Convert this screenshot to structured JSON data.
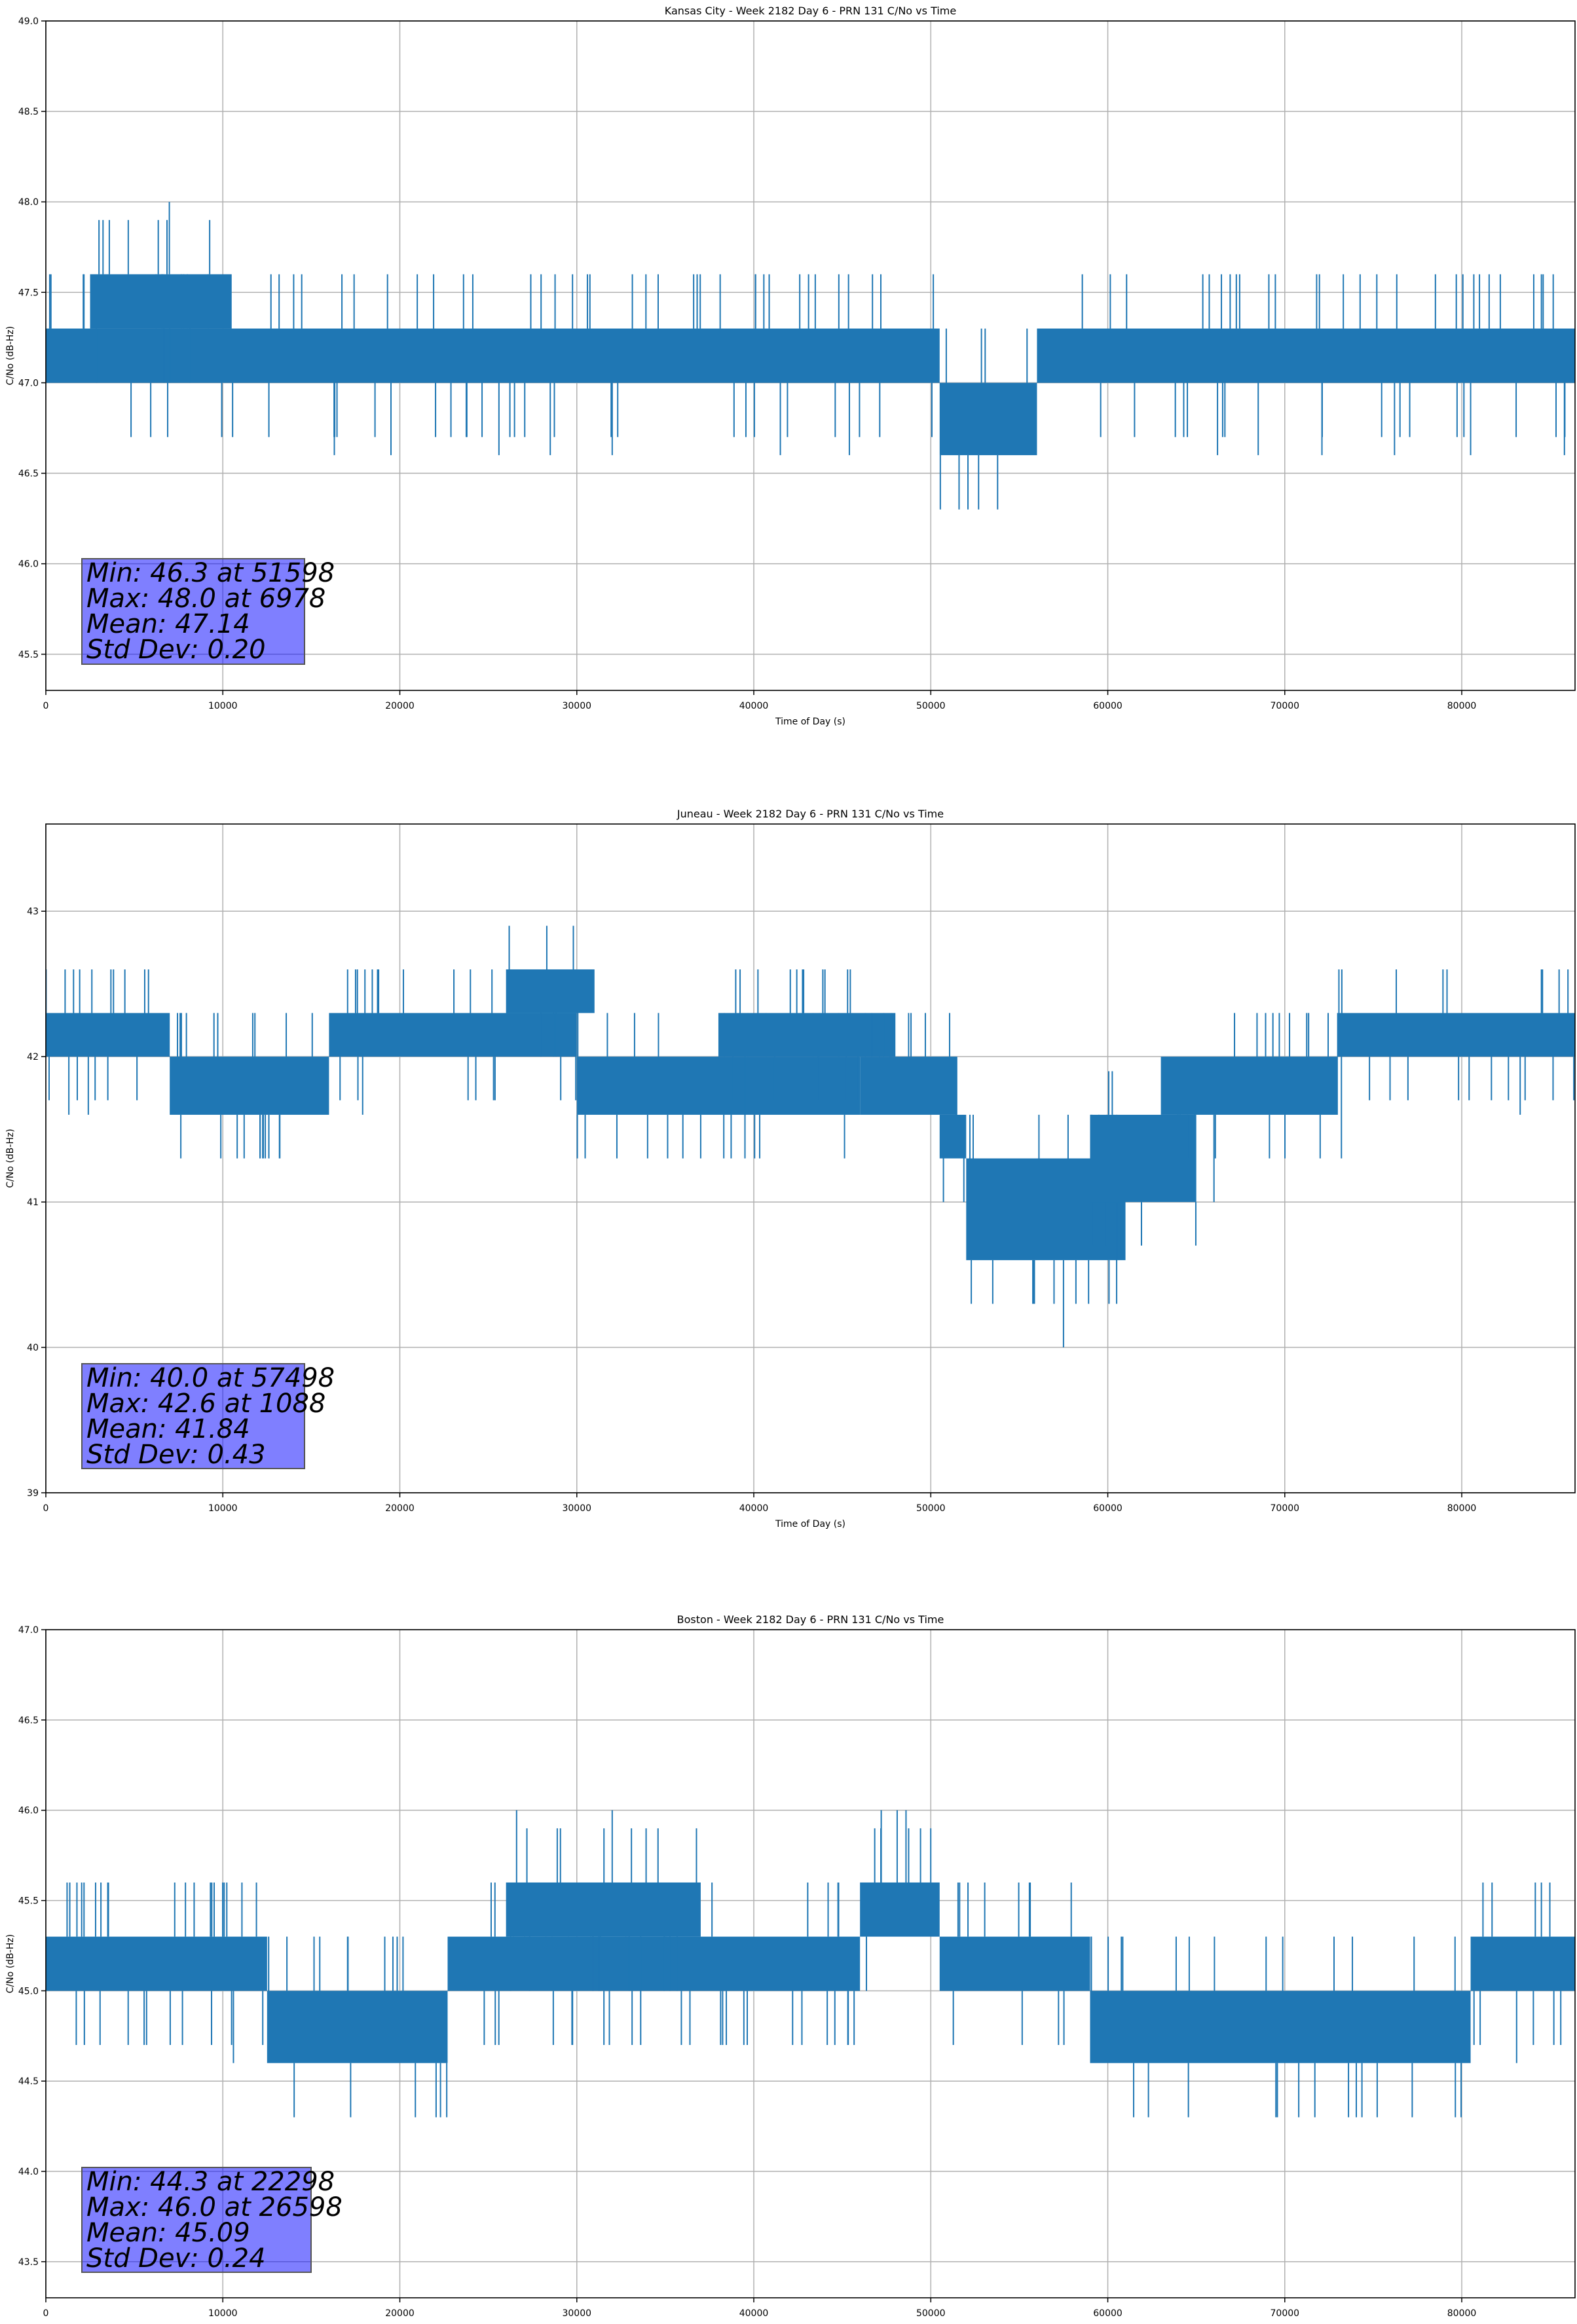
{
  "colors": {
    "series": "#1f77b4",
    "grid": "#b0b0b0",
    "stats_box": "#8080ff"
  },
  "chart_data": [
    {
      "type": "line",
      "title": "Kansas City - Week 2182 Day 6 - PRN 131 C/No vs Time",
      "xlabel": "Time of Day (s)",
      "ylabel": "C/No (dB-Hz)",
      "xlim": [
        0,
        86400
      ],
      "ylim": [
        45.3,
        49.0
      ],
      "xticks": [
        0,
        10000,
        20000,
        30000,
        40000,
        50000,
        60000,
        70000,
        80000
      ],
      "xtick_labels": [
        "0",
        "10000",
        "20000",
        "30000",
        "40000",
        "50000",
        "60000",
        "70000",
        "80000"
      ],
      "yticks": [
        45.5,
        46.0,
        46.5,
        47.0,
        47.5,
        48.0,
        48.5,
        49.0
      ],
      "ytick_labels": [
        "45.5",
        "46.0",
        "46.5",
        "47.0",
        "47.5",
        "48.0",
        "48.5",
        "49.0"
      ],
      "grid": true,
      "bands": [
        {
          "x": [
            0,
            50500
          ],
          "range": [
            47.0,
            47.3
          ]
        },
        {
          "x": [
            2500,
            10500
          ],
          "range": [
            47.3,
            47.6
          ]
        },
        {
          "x": [
            50500,
            56000
          ],
          "range": [
            46.6,
            47.0
          ]
        },
        {
          "x": [
            56000,
            86400
          ],
          "range": [
            47.0,
            47.3
          ]
        }
      ],
      "spikes": [
        {
          "x": 6978,
          "value": 48.0
        },
        {
          "x": 51598,
          "value": 46.3
        },
        {
          "x": 52100,
          "value": 46.3
        },
        {
          "x": 52700,
          "value": 46.3
        },
        {
          "x": 16300,
          "value": 46.6
        },
        {
          "x": 19500,
          "value": 46.6
        },
        {
          "x": 25600,
          "value": 46.6
        },
        {
          "x": 28500,
          "value": 46.6
        },
        {
          "x": 32000,
          "value": 46.6
        },
        {
          "x": 41500,
          "value": 46.6
        },
        {
          "x": 45400,
          "value": 46.6
        },
        {
          "x": 66200,
          "value": 46.6
        },
        {
          "x": 68500,
          "value": 46.6
        },
        {
          "x": 72100,
          "value": 46.6
        },
        {
          "x": 76200,
          "value": 46.6
        },
        {
          "x": 80500,
          "value": 46.6
        },
        {
          "x": 85800,
          "value": 46.6
        },
        {
          "x": 23600,
          "value": 47.6
        },
        {
          "x": 27400,
          "value": 47.6
        },
        {
          "x": 30600,
          "value": 47.6
        },
        {
          "x": 36800,
          "value": 47.6
        },
        {
          "x": 38100,
          "value": 47.6
        },
        {
          "x": 69100,
          "value": 47.6
        },
        {
          "x": 71800,
          "value": 47.6
        },
        {
          "x": 75200,
          "value": 47.6
        },
        {
          "x": 81000,
          "value": 47.6
        },
        {
          "x": 84500,
          "value": 47.6
        }
      ],
      "stats": [
        "Min: 46.3 at 51598",
        "Max: 48.0 at 6978",
        "Mean: 47.14",
        "Std Dev: 0.20"
      ]
    },
    {
      "type": "line",
      "title": "Juneau - Week 2182 Day 6 - PRN 131 C/No vs Time",
      "xlabel": "Time of Day (s)",
      "ylabel": "C/No (dB-Hz)",
      "xlim": [
        0,
        86400
      ],
      "ylim": [
        39.0,
        43.6
      ],
      "xticks": [
        0,
        10000,
        20000,
        30000,
        40000,
        50000,
        60000,
        70000,
        80000
      ],
      "xtick_labels": [
        "0",
        "10000",
        "20000",
        "30000",
        "40000",
        "50000",
        "60000",
        "70000",
        "80000"
      ],
      "yticks": [
        39,
        40,
        41,
        42,
        43
      ],
      "ytick_labels": [
        "39",
        "40",
        "41",
        "42",
        "43"
      ],
      "grid": true,
      "bands": [
        {
          "x": [
            0,
            7000
          ],
          "range": [
            42.0,
            42.3
          ]
        },
        {
          "x": [
            7000,
            16000
          ],
          "range": [
            41.6,
            42.0
          ]
        },
        {
          "x": [
            16000,
            30000
          ],
          "range": [
            42.0,
            42.3
          ]
        },
        {
          "x": [
            26000,
            31000
          ],
          "range": [
            42.3,
            42.6
          ]
        },
        {
          "x": [
            30000,
            46000
          ],
          "range": [
            41.6,
            42.0
          ]
        },
        {
          "x": [
            38000,
            48000
          ],
          "range": [
            42.0,
            42.3
          ]
        },
        {
          "x": [
            46000,
            51500
          ],
          "range": [
            41.6,
            42.0
          ]
        },
        {
          "x": [
            50500,
            52000
          ],
          "range": [
            41.3,
            41.6
          ]
        },
        {
          "x": [
            52000,
            61000
          ],
          "range": [
            40.6,
            41.3
          ]
        },
        {
          "x": [
            59000,
            65000
          ],
          "range": [
            41.0,
            41.6
          ]
        },
        {
          "x": [
            63000,
            73000
          ],
          "range": [
            41.6,
            42.0
          ]
        },
        {
          "x": [
            73000,
            86400
          ],
          "range": [
            42.0,
            42.3
          ]
        }
      ],
      "spikes": [
        {
          "x": 57498,
          "value": 40.0
        },
        {
          "x": 1088,
          "value": 42.6
        },
        {
          "x": 12100,
          "value": 41.3
        },
        {
          "x": 12600,
          "value": 41.3
        },
        {
          "x": 13200,
          "value": 41.3
        },
        {
          "x": 53500,
          "value": 40.3
        },
        {
          "x": 55800,
          "value": 40.3
        },
        {
          "x": 58200,
          "value": 40.3
        },
        {
          "x": 60500,
          "value": 40.3
        },
        {
          "x": 2600,
          "value": 42.6
        },
        {
          "x": 5800,
          "value": 42.6
        },
        {
          "x": 17500,
          "value": 42.6
        },
        {
          "x": 18800,
          "value": 42.6
        },
        {
          "x": 43900,
          "value": 42.6
        },
        {
          "x": 45300,
          "value": 42.6
        },
        {
          "x": 76300,
          "value": 42.6
        },
        {
          "x": 84500,
          "value": 42.6
        },
        {
          "x": 85500,
          "value": 42.6
        },
        {
          "x": 86000,
          "value": 42.6
        },
        {
          "x": 1300,
          "value": 41.6
        },
        {
          "x": 2400,
          "value": 41.6
        },
        {
          "x": 17900,
          "value": 41.6
        },
        {
          "x": 34000,
          "value": 41.3
        },
        {
          "x": 37000,
          "value": 41.3
        },
        {
          "x": 39500,
          "value": 41.3
        },
        {
          "x": 66000,
          "value": 41.0
        },
        {
          "x": 72000,
          "value": 41.3
        },
        {
          "x": 73200,
          "value": 41.3
        },
        {
          "x": 83300,
          "value": 41.6
        }
      ],
      "stats": [
        "Min: 40.0 at 57498",
        "Max: 42.6 at 1088",
        "Mean: 41.84",
        "Std Dev: 0.43"
      ]
    },
    {
      "type": "line",
      "title": "Boston - Week 2182 Day 6 - PRN 131 C/No vs Time",
      "xlabel": "Time of Day (s)",
      "ylabel": "C/No (dB-Hz)",
      "xlim": [
        0,
        86400
      ],
      "ylim": [
        43.3,
        47.0
      ],
      "xticks": [
        0,
        10000,
        20000,
        30000,
        40000,
        50000,
        60000,
        70000,
        80000
      ],
      "xtick_labels": [
        "0",
        "10000",
        "20000",
        "30000",
        "40000",
        "50000",
        "60000",
        "70000",
        "80000"
      ],
      "yticks": [
        43.5,
        44.0,
        44.5,
        45.0,
        45.5,
        46.0,
        46.5,
        47.0
      ],
      "ytick_labels": [
        "43.5",
        "44.0",
        "44.5",
        "45.0",
        "45.5",
        "46.0",
        "46.5",
        "47.0"
      ],
      "grid": true,
      "bands": [
        {
          "x": [
            0,
            12500
          ],
          "range": [
            45.0,
            45.3
          ]
        },
        {
          "x": [
            12500,
            22700
          ],
          "range": [
            44.6,
            45.0
          ]
        },
        {
          "x": [
            22700,
            46000
          ],
          "range": [
            45.0,
            45.3
          ]
        },
        {
          "x": [
            26000,
            37000
          ],
          "range": [
            45.3,
            45.6
          ]
        },
        {
          "x": [
            46000,
            50500
          ],
          "range": [
            45.3,
            45.6
          ]
        },
        {
          "x": [
            50500,
            59000
          ],
          "range": [
            45.0,
            45.3
          ]
        },
        {
          "x": [
            59000,
            80500
          ],
          "range": [
            44.6,
            45.0
          ]
        },
        {
          "x": [
            80500,
            86400
          ],
          "range": [
            45.0,
            45.3
          ]
        }
      ],
      "spikes": [
        {
          "x": 22298,
          "value": 44.3
        },
        {
          "x": 26598,
          "value": 46.0
        },
        {
          "x": 32000,
          "value": 46.0
        },
        {
          "x": 47200,
          "value": 46.0
        },
        {
          "x": 48100,
          "value": 46.0
        },
        {
          "x": 48600,
          "value": 46.0
        },
        {
          "x": 69500,
          "value": 44.3
        },
        {
          "x": 71700,
          "value": 44.3
        },
        {
          "x": 73600,
          "value": 44.3
        },
        {
          "x": 84500,
          "value": 45.6
        },
        {
          "x": 1200,
          "value": 45.6
        },
        {
          "x": 3500,
          "value": 45.6
        },
        {
          "x": 9300,
          "value": 45.6
        },
        {
          "x": 10600,
          "value": 44.6
        },
        {
          "x": 44200,
          "value": 45.6
        },
        {
          "x": 67100,
          "value": 44.6
        },
        {
          "x": 83100,
          "value": 44.6
        }
      ],
      "stats": [
        "Min: 44.3 at 22298",
        "Max: 46.0 at 26598",
        "Mean: 45.09",
        "Std Dev: 0.24"
      ]
    }
  ]
}
